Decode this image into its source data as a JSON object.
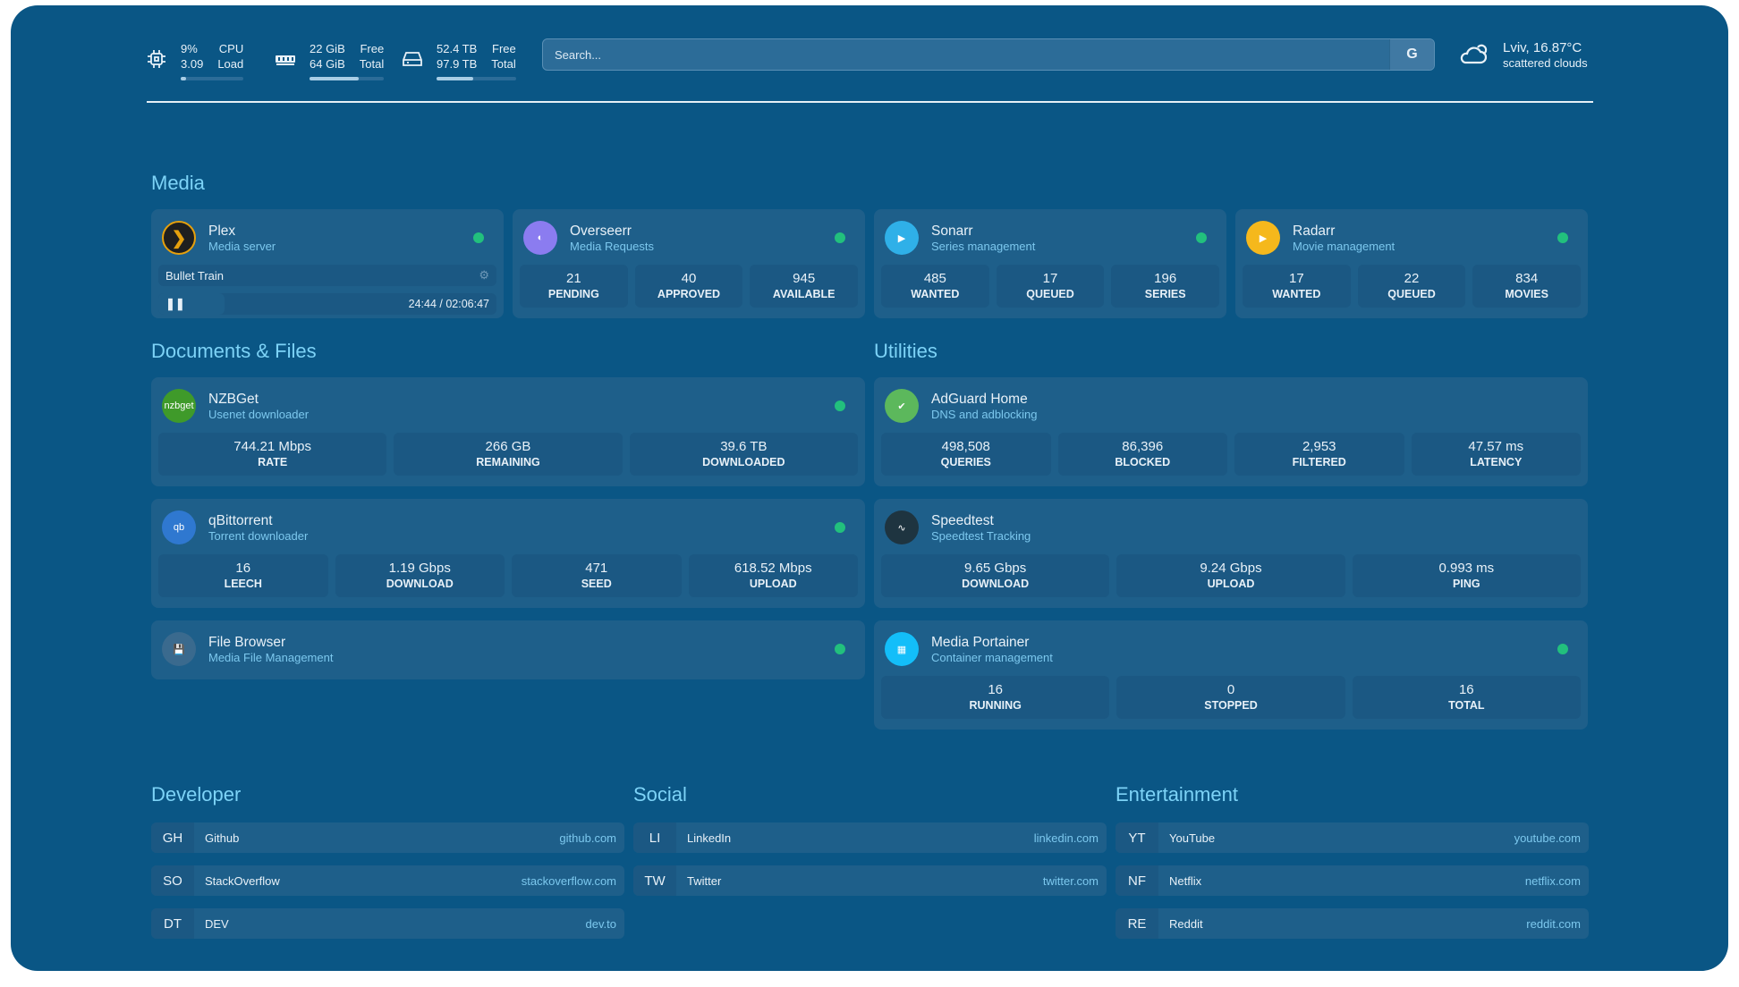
{
  "topbar": {
    "cpu": {
      "icon": "cpu-icon",
      "value1": "9%",
      "label1": "CPU",
      "value2": "3.09",
      "label2": "Load",
      "percent": 9
    },
    "memory": {
      "icon": "memory-icon",
      "value1": "22 GiB",
      "label1": "Free",
      "value2": "64 GiB",
      "label2": "Total",
      "percent": 66
    },
    "disk": {
      "icon": "disk-icon",
      "value1": "52.4 TB",
      "label1": "Free",
      "value2": "97.9 TB",
      "label2": "Total",
      "percent": 46
    },
    "search": {
      "placeholder": "Search...",
      "engine_label": "G"
    },
    "weather": {
      "icon": "cloud-icon",
      "location_temp": "Lviv, 16.87°C",
      "condition": "scattered clouds"
    }
  },
  "sections": {
    "media": "Media",
    "documents": "Documents & Files",
    "utilities": "Utilities",
    "developer": "Developer",
    "social": "Social",
    "entertainment": "Entertainment"
  },
  "colors": {
    "background": "#0a5685",
    "card": "#1e5f8a",
    "status_online": "#22c07d",
    "accent": "#7dd3f7"
  },
  "plex": {
    "title": "Plex",
    "subtitle": "Media server",
    "now_playing": "Bullet Train",
    "progress": "24:44 / 02:06:47",
    "progress_percent": 19.5
  },
  "services": [
    {
      "title": "Overseerr",
      "subtitle": "Media Requests",
      "logo": "#8b7cf0",
      "stats": [
        {
          "v": "21",
          "l": "PENDING"
        },
        {
          "v": "40",
          "l": "APPROVED"
        },
        {
          "v": "945",
          "l": "AVAILABLE"
        }
      ]
    },
    {
      "title": "Sonarr",
      "subtitle": "Series management",
      "logo": "#2fb0e8",
      "stats": [
        {
          "v": "485",
          "l": "WANTED"
        },
        {
          "v": "17",
          "l": "QUEUED"
        },
        {
          "v": "196",
          "l": "SERIES"
        }
      ]
    },
    {
      "title": "Radarr",
      "subtitle": "Movie management",
      "logo": "#f5b81c",
      "stats": [
        {
          "v": "17",
          "l": "WANTED"
        },
        {
          "v": "22",
          "l": "QUEUED"
        },
        {
          "v": "834",
          "l": "MOVIES"
        }
      ]
    },
    {
      "title": "NZBGet",
      "subtitle": "Usenet downloader",
      "logo": "#3f9a2a",
      "logotext": "nzbget",
      "stats": [
        {
          "v": "744.21 Mbps",
          "l": "RATE"
        },
        {
          "v": "266 GB",
          "l": "REMAINING"
        },
        {
          "v": "39.6 TB",
          "l": "DOWNLOADED"
        }
      ]
    },
    {
      "title": "qBittorrent",
      "subtitle": "Torrent downloader",
      "logo": "#2f78d0",
      "logotext": "qb",
      "stats": [
        {
          "v": "16",
          "l": "LEECH"
        },
        {
          "v": "1.19 Gbps",
          "l": "DOWNLOAD"
        },
        {
          "v": "471",
          "l": "SEED"
        },
        {
          "v": "618.52 Mbps",
          "l": "UPLOAD"
        }
      ]
    },
    {
      "title": "File Browser",
      "subtitle": "Media File Management",
      "logo": "#3a6a8e",
      "stats": []
    },
    {
      "title": "AdGuard Home",
      "subtitle": "DNS and adblocking",
      "logo": "#5cb85c",
      "stats": [
        {
          "v": "498,508",
          "l": "QUERIES"
        },
        {
          "v": "86,396",
          "l": "BLOCKED"
        },
        {
          "v": "2,953",
          "l": "FILTERED"
        },
        {
          "v": "47.57 ms",
          "l": "LATENCY"
        }
      ]
    },
    {
      "title": "Speedtest",
      "subtitle": "Speedtest Tracking",
      "logo": "#1e3440",
      "stats": [
        {
          "v": "9.65 Gbps",
          "l": "DOWNLOAD"
        },
        {
          "v": "9.24 Gbps",
          "l": "UPLOAD"
        },
        {
          "v": "0.993 ms",
          "l": "PING"
        }
      ]
    },
    {
      "title": "Media Portainer",
      "subtitle": "Container management",
      "logo": "#13bef9",
      "stats": [
        {
          "v": "16",
          "l": "RUNNING"
        },
        {
          "v": "0",
          "l": "STOPPED"
        },
        {
          "v": "16",
          "l": "TOTAL"
        }
      ]
    }
  ],
  "bookmarks": {
    "developer": [
      {
        "abbr": "GH",
        "name": "Github",
        "url": "github.com"
      },
      {
        "abbr": "SO",
        "name": "StackOverflow",
        "url": "stackoverflow.com"
      },
      {
        "abbr": "DT",
        "name": "DEV",
        "url": "dev.to"
      }
    ],
    "social": [
      {
        "abbr": "LI",
        "name": "LinkedIn",
        "url": "linkedin.com"
      },
      {
        "abbr": "TW",
        "name": "Twitter",
        "url": "twitter.com"
      }
    ],
    "entertainment": [
      {
        "abbr": "YT",
        "name": "YouTube",
        "url": "youtube.com"
      },
      {
        "abbr": "NF",
        "name": "Netflix",
        "url": "netflix.com"
      },
      {
        "abbr": "RE",
        "name": "Reddit",
        "url": "reddit.com"
      }
    ]
  }
}
